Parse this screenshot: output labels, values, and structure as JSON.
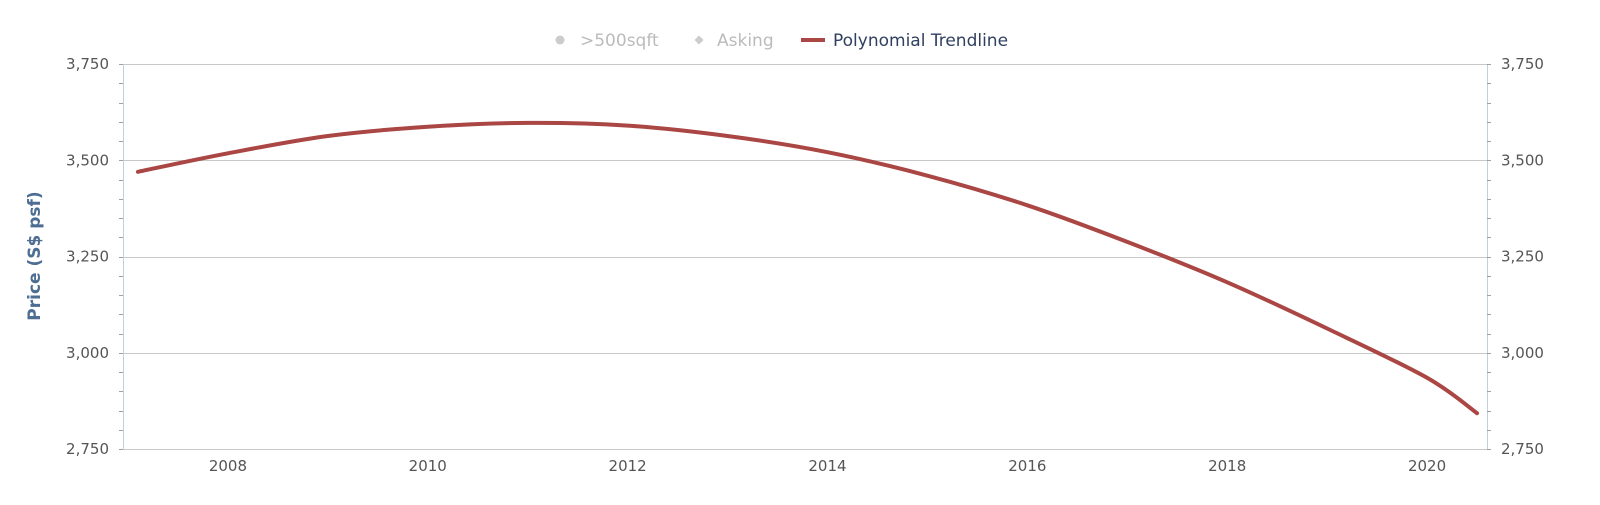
{
  "chart_data": {
    "type": "line",
    "title": "",
    "ylabel": "Price (S$ psf)",
    "xlabel": "",
    "x_ticks": [
      2008,
      2010,
      2012,
      2014,
      2016,
      2018,
      2020
    ],
    "x_tick_labels": [
      "2008",
      "2010",
      "2012",
      "2014",
      "2016",
      "2018",
      "2020"
    ],
    "xlim": [
      2006.95,
      2020.6
    ],
    "ylim": [
      2750,
      3750
    ],
    "y_ticks": [
      2750,
      3000,
      3250,
      3500,
      3750
    ],
    "y_tick_labels": [
      "2,750",
      "3,000",
      "3,250",
      "3,500",
      "3,750"
    ],
    "y_tick_labels_right": [
      "2,750",
      "3,000",
      "3,250",
      "3,500",
      "3,750"
    ],
    "grid": true,
    "legend_position": "top-center",
    "legend": [
      {
        "label": ">500sqft",
        "marker": "circle",
        "color": "#cccccc",
        "text_color": "#bbbbbb"
      },
      {
        "label": "Asking",
        "marker": "diamond",
        "color": "#cccccc",
        "text_color": "#bbbbbb"
      },
      {
        "label": "Polynomial Trendline",
        "marker": "line",
        "color": "#aa4643",
        "text_color": "#2f3f5f"
      }
    ],
    "series": [
      {
        "name": "Polynomial Trendline",
        "color": "#aa4643",
        "x": [
          2007.1,
          2008,
          2009,
          2010,
          2011,
          2012,
          2013,
          2014,
          2015,
          2016,
          2017,
          2018,
          2019,
          2020,
          2020.5
        ],
        "y": [
          3470,
          3518,
          3563,
          3587,
          3597,
          3590,
          3563,
          3521,
          3460,
          3383,
          3288,
          3183,
          3063,
          2935,
          2843
        ]
      }
    ]
  }
}
